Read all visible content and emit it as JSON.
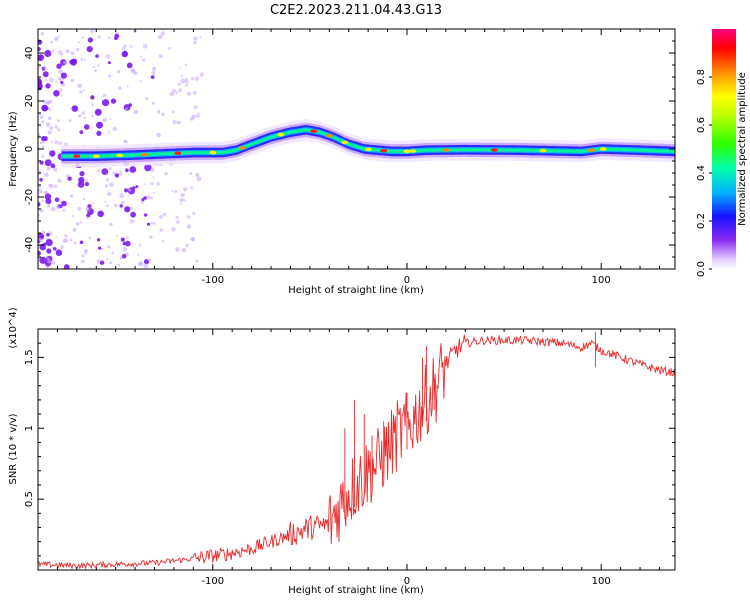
{
  "title": "C2E2.2023.211.04.43.G13",
  "chart_data": [
    {
      "type": "heatmap",
      "title": "C2E2.2023.211.04.43.G13",
      "xlabel": "Height of straight line (km)",
      "ylabel": "Frequency (Hz)",
      "xlim": [
        -190,
        138
      ],
      "ylim": [
        -50,
        50
      ],
      "xticks": [
        -100,
        0,
        100
      ],
      "yticks": [
        -40,
        -20,
        0,
        20,
        40
      ],
      "grid": false,
      "colorbar": {
        "label": "Normalized spectral amplitude",
        "range": [
          0,
          1
        ],
        "ticks": [
          0.0,
          0.2,
          0.4,
          0.6,
          0.8
        ],
        "colors": [
          "#ffffff",
          "#c39bff",
          "#7a1cf0",
          "#1414ff",
          "#00c8ff",
          "#00ff80",
          "#33ff00",
          "#ffff00",
          "#ff8c00",
          "#ff0000",
          "#ff0080"
        ]
      },
      "ridge": {
        "x": [
          -175,
          -160,
          -140,
          -125,
          -110,
          -95,
          -88,
          -80,
          -70,
          -60,
          -52,
          -45,
          -38,
          -30,
          -22,
          -15,
          -8,
          0,
          10,
          30,
          60,
          90,
          100,
          120,
          138
        ],
        "y": [
          -3,
          -3,
          -2.5,
          -2,
          -1.5,
          -1.5,
          -0.5,
          2,
          5,
          7,
          8,
          7,
          5,
          2,
          0,
          -0.5,
          -1,
          -1,
          -0.5,
          -0.3,
          -0.5,
          -1,
          0,
          -0.5,
          -1
        ]
      },
      "noise_region_x": [
        -190,
        -120
      ]
    },
    {
      "type": "line",
      "xlabel": "Height of straight line (km)",
      "ylabel": "SNR (10 * v/v)",
      "y_multiplier": "(x10^4)",
      "xlim": [
        -190,
        138
      ],
      "ylim": [
        0,
        1.7
      ],
      "xticks": [
        -100,
        0,
        100
      ],
      "yticks": [
        0.5,
        1.0,
        1.5
      ],
      "grid": false,
      "color": "#e82c2c",
      "series": [
        {
          "name": "SNR",
          "x": [
            -190,
            -170,
            -150,
            -130,
            -110,
            -90,
            -80,
            -70,
            -60,
            -50,
            -40,
            -35,
            -30,
            -25,
            -20,
            -15,
            -10,
            -5,
            0,
            5,
            10,
            15,
            20,
            25,
            30,
            40,
            50,
            60,
            70,
            80,
            90,
            95,
            100,
            110,
            120,
            130,
            138
          ],
          "y": [
            0.04,
            0.03,
            0.04,
            0.05,
            0.08,
            0.12,
            0.15,
            0.2,
            0.25,
            0.3,
            0.32,
            0.45,
            0.55,
            0.62,
            0.7,
            0.75,
            0.85,
            0.95,
            1.0,
            1.1,
            1.2,
            1.3,
            1.45,
            1.55,
            1.6,
            1.62,
            1.62,
            1.62,
            1.61,
            1.6,
            1.57,
            1.6,
            1.55,
            1.5,
            1.45,
            1.41,
            1.39
          ]
        }
      ],
      "spikes": [
        {
          "x": -32,
          "y": 1.0
        },
        {
          "x": -27,
          "y": 1.2
        },
        {
          "x": -22,
          "y": 1.1
        },
        {
          "x": -18,
          "y": 0.95
        },
        {
          "x": -12,
          "y": 1.05
        },
        {
          "x": 0,
          "y": 1.25
        },
        {
          "x": 8,
          "y": 1.5
        },
        {
          "x": 10,
          "y": 1.58
        },
        {
          "x": 14,
          "y": 1.35
        },
        {
          "x": 97,
          "y": 1.68
        }
      ]
    }
  ]
}
